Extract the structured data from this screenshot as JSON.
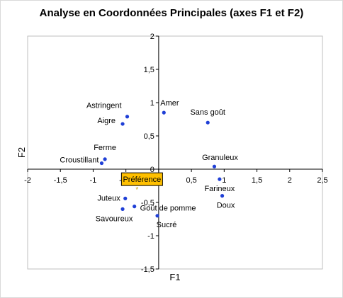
{
  "chart_data": {
    "type": "scatter",
    "title": "Analyse en Coordonnées Principales (axes F1 et F2)",
    "xlabel": "F1",
    "ylabel": "F2",
    "xlim": [
      -2,
      2.5
    ],
    "ylim": [
      -1.5,
      2
    ],
    "xticks": [
      -2,
      -1.5,
      -1,
      -0.5,
      0,
      0.5,
      1,
      1.5,
      2,
      2.5
    ],
    "yticks": [
      -1.5,
      -1,
      -0.5,
      0,
      0.5,
      1,
      1.5,
      2
    ],
    "xtick_labels": [
      "-2",
      "-1,5",
      "-1",
      "-0,5",
      "0",
      "0,5",
      "1",
      "1,5",
      "2",
      "2,5"
    ],
    "ytick_labels": [
      "-1,5",
      "-1",
      "-0,5",
      "0",
      "0,5",
      "1",
      "1,5",
      "2"
    ],
    "grid": false,
    "series": [
      {
        "color": "#1f3fd6",
        "points": [
          {
            "label": "Amer",
            "x": 0.08,
            "y": 0.85
          },
          {
            "label": "Sans goût",
            "x": 0.75,
            "y": 0.7
          },
          {
            "label": "Astringent",
            "x": -0.48,
            "y": 0.79
          },
          {
            "label": "Aigre",
            "x": -0.55,
            "y": 0.68
          },
          {
            "label": "Ferme",
            "x": -0.82,
            "y": 0.15
          },
          {
            "label": "Croustillant",
            "x": -0.87,
            "y": 0.09
          },
          {
            "label": "Granuleux",
            "x": 0.85,
            "y": 0.04
          },
          {
            "label": "Farineux",
            "x": 0.93,
            "y": -0.15
          },
          {
            "label": "Doux",
            "x": 0.97,
            "y": -0.4
          },
          {
            "label": "Juteux",
            "x": -0.51,
            "y": -0.44
          },
          {
            "label": "Savoureux",
            "x": -0.55,
            "y": -0.6
          },
          {
            "label": "Goût de pomme",
            "x": -0.37,
            "y": -0.56
          },
          {
            "label": "Sucré",
            "x": -0.02,
            "y": -0.7
          }
        ]
      },
      {
        "color": "#c8a000",
        "points": [
          {
            "label": "Préférence",
            "x": -0.33,
            "y": -0.31
          }
        ]
      }
    ],
    "highlight_label": {
      "text": "Préférence",
      "fill": "#ffc000",
      "border": "#000000"
    }
  }
}
